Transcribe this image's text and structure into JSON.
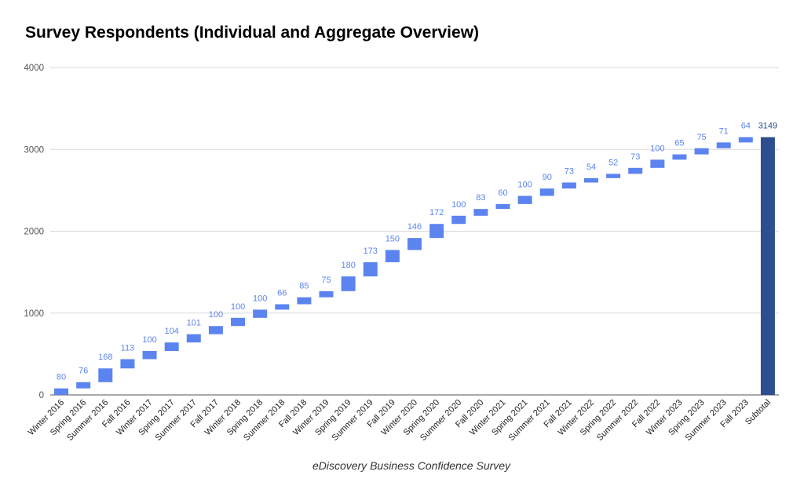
{
  "chart_data": {
    "type": "bar",
    "subtype": "waterfall",
    "title": "Survey Respondents (Individual and Aggregate Overview)",
    "xlabel": "eDiscovery Business Confidence Survey",
    "ylabel": "",
    "ylim": [
      0,
      4000
    ],
    "yticks": [
      0,
      1000,
      2000,
      3000,
      4000
    ],
    "grid": true,
    "legend": "none",
    "categories": [
      "Winter 2016",
      "Spring 2016",
      "Summer 2016",
      "Fall 2016",
      "Winter 2017",
      "Spring 2017",
      "Summer 2017",
      "Fall 2017",
      "Winter 2018",
      "Spring 2018",
      "Summer 2018",
      "Fall 2018",
      "Winter 2019",
      "Spring 2019",
      "Summer 2019",
      "Fall 2019",
      "Winter 2020",
      "Spring 2020",
      "Summer 2020",
      "Fall 2020",
      "Winter 2021",
      "Spring 2021",
      "Summer 2021",
      "Fall 2021",
      "Winter 2022",
      "Spring 2022",
      "Summer 2022",
      "Fall 2022",
      "Winter 2023",
      "Spring 2023",
      "Summer 2023",
      "Fall 2023"
    ],
    "values": [
      80,
      76,
      168,
      113,
      100,
      104,
      101,
      100,
      100,
      100,
      66,
      85,
      75,
      180,
      173,
      150,
      146,
      172,
      100,
      83,
      60,
      100,
      90,
      73,
      54,
      52,
      73,
      100,
      65,
      75,
      71,
      64
    ],
    "total": {
      "label": "Subtotal",
      "value": 3149
    },
    "colors": {
      "increase": "#5b84f0",
      "total": "#2d4f8f",
      "grid": "#d9d9d9",
      "label": "#5b84f0",
      "total_label": "#2d4f8f"
    }
  }
}
